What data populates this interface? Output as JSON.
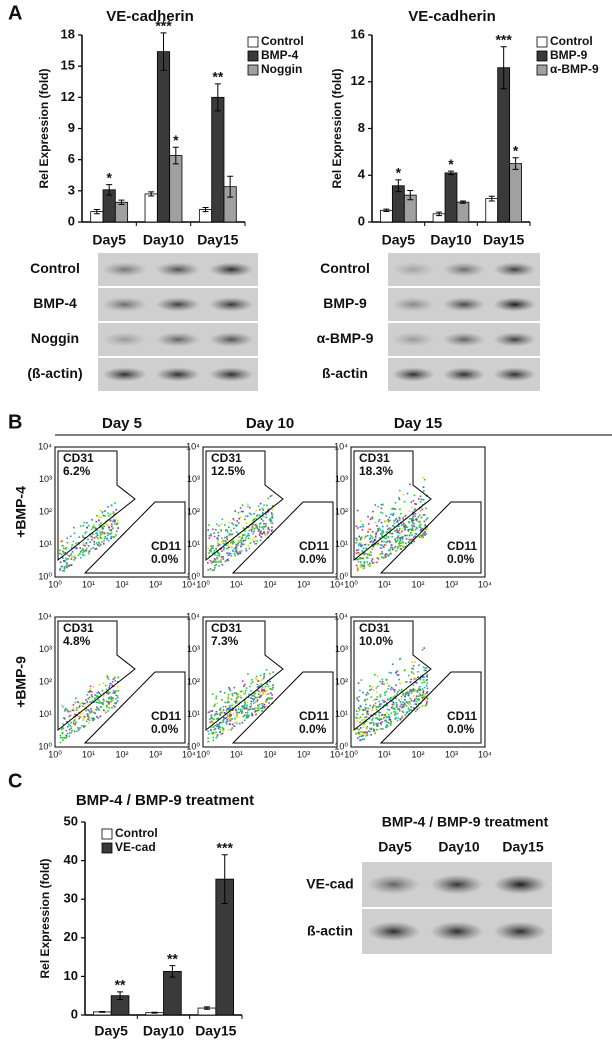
{
  "chart_data": [
    {
      "type": "bar",
      "panel": "A",
      "title": "VE-cadherin",
      "y_label": "Rel Expression (fold)",
      "categories": [
        "Day5",
        "Day10",
        "Day15"
      ],
      "series": [
        {
          "name": "Control",
          "color": "#ffffff",
          "values": [
            1.0,
            2.7,
            1.2
          ],
          "errors": [
            0.2,
            0.2,
            0.2
          ]
        },
        {
          "name": "BMP-4",
          "color": "#3a3a3a",
          "values": [
            3.1,
            16.4,
            12.0
          ],
          "errors": [
            0.5,
            1.8,
            1.3
          ]
        },
        {
          "name": "Noggin",
          "color": "#a0a0a0",
          "values": [
            1.9,
            6.4,
            3.4
          ],
          "errors": [
            0.2,
            0.8,
            1.0
          ]
        }
      ],
      "annotations": [
        {
          "text": "*",
          "series": 1,
          "category": 0
        },
        {
          "text": "***",
          "series": 1,
          "category": 1
        },
        {
          "text": "*",
          "series": 2,
          "category": 1
        },
        {
          "text": "**",
          "series": 1,
          "category": 2
        }
      ],
      "ylim": [
        0,
        18
      ],
      "yticks": [
        0,
        3,
        6,
        9,
        12,
        15,
        18
      ]
    },
    {
      "type": "bar",
      "title": "VE-cadherin",
      "y_label": "Rel Expression (fold)",
      "categories": [
        "Day5",
        "Day10",
        "Day15"
      ],
      "series": [
        {
          "name": "Control",
          "color": "#ffffff",
          "values": [
            1.0,
            0.7,
            2.0
          ],
          "errors": [
            0.1,
            0.15,
            0.2
          ]
        },
        {
          "name": "BMP-9",
          "color": "#3a3a3a",
          "values": [
            3.1,
            4.2,
            13.2
          ],
          "errors": [
            0.5,
            0.15,
            1.8
          ]
        },
        {
          "name": "α-BMP-9",
          "color": "#a0a0a0",
          "values": [
            2.3,
            1.7,
            5.0
          ],
          "errors": [
            0.4,
            0.1,
            0.5
          ]
        }
      ],
      "annotations": [
        {
          "text": "*",
          "series": 1,
          "category": 0
        },
        {
          "text": "*",
          "series": 1,
          "category": 1
        },
        {
          "text": "***",
          "series": 1,
          "category": 2
        },
        {
          "text": "*",
          "series": 2,
          "category": 2
        }
      ],
      "ylim": [
        0,
        16
      ],
      "yticks": [
        0,
        4,
        8,
        12,
        16
      ]
    },
    {
      "type": "bar",
      "panel": "C",
      "title": "BMP-4 / BMP-9 treatment",
      "y_label": "Rel Expression (fold)",
      "categories": [
        "Day5",
        "Day10",
        "Day15"
      ],
      "series": [
        {
          "name": "Control",
          "color": "#ffffff",
          "values": [
            0.8,
            0.6,
            1.8
          ],
          "errors": [
            0.1,
            0.1,
            0.3
          ]
        },
        {
          "name": "VE-cad",
          "color": "#3a3a3a",
          "values": [
            5.0,
            11.3,
            35.2
          ],
          "errors": [
            1.0,
            1.5,
            6.3
          ]
        }
      ],
      "annotations": [
        {
          "text": "**",
          "series": 1,
          "category": 0
        },
        {
          "text": "**",
          "series": 1,
          "category": 1
        },
        {
          "text": "***",
          "series": 1,
          "category": 2
        }
      ],
      "ylim": [
        0,
        50
      ],
      "yticks": [
        0,
        10,
        20,
        30,
        40,
        50
      ]
    }
  ],
  "blots": {
    "left_rows": [
      "Control",
      "BMP-4",
      "Noggin",
      "(ß-actin)"
    ],
    "right_rows": [
      "Control",
      "BMP-9",
      "α-BMP-9",
      "ß-actin"
    ],
    "c_title": "BMP-4 / BMP-9 treatment",
    "c_columns": [
      "Day5",
      "Day10",
      "Day15"
    ],
    "c_rows": [
      "VE-cad",
      "ß-actin"
    ]
  },
  "flow": {
    "panel": "B",
    "columns": [
      "Day 5",
      "Day 10",
      "Day 15"
    ],
    "rows": [
      "+BMP-4",
      "+BMP-9"
    ],
    "axis_ticks": [
      "10⁰",
      "10¹",
      "10²",
      "10³",
      "10⁴"
    ],
    "plots": [
      [
        {
          "gate1": "CD31",
          "pct1": "6.2%",
          "gate2": "CD11",
          "pct2": "0.0%"
        },
        {
          "gate1": "CD31",
          "pct1": "12.5%",
          "gate2": "CD11",
          "pct2": "0.0%"
        },
        {
          "gate1": "CD31",
          "pct1": "18.3%",
          "gate2": "CD11",
          "pct2": "0.0%"
        }
      ],
      [
        {
          "gate1": "CD31",
          "pct1": "4.8%",
          "gate2": "CD11",
          "pct2": "0.0%"
        },
        {
          "gate1": "CD31",
          "pct1": "7.3%",
          "gate2": "CD11",
          "pct2": "0.0%"
        },
        {
          "gate1": "CD31",
          "pct1": "10.0%",
          "gate2": "CD11",
          "pct2": "0.0%"
        }
      ]
    ]
  }
}
